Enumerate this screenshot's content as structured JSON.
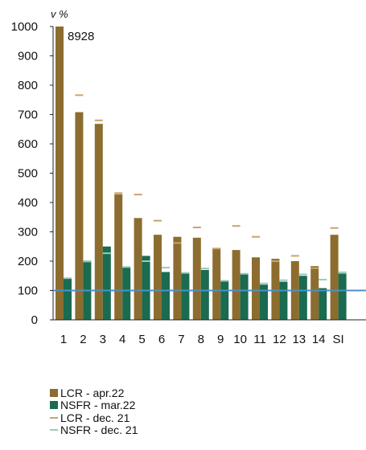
{
  "chart_data": {
    "type": "bar",
    "y_unit_label": "v %",
    "categories": [
      "1",
      "2",
      "3",
      "4",
      "5",
      "6",
      "7",
      "8",
      "9",
      "10",
      "11",
      "12",
      "13",
      "14",
      "SI"
    ],
    "ylim": [
      0,
      1000
    ],
    "yticks": [
      0,
      100,
      200,
      300,
      400,
      500,
      600,
      700,
      800,
      900,
      1000
    ],
    "grid": false,
    "reference_line": {
      "y": 100,
      "color": "#4a90c8"
    },
    "legend_position": "bottom",
    "series": [
      {
        "name": "LCR - apr.22",
        "kind": "bar",
        "color": "#8c6d2f",
        "values": [
          1000,
          708,
          668,
          428,
          347,
          290,
          283,
          280,
          245,
          238,
          213,
          208,
          200,
          183,
          290
        ]
      },
      {
        "name": "NSFR - mar.22",
        "kind": "bar",
        "color": "#1a6b4f",
        "values": [
          140,
          202,
          250,
          178,
          218,
          163,
          158,
          170,
          133,
          158,
          120,
          130,
          150,
          108,
          158
        ]
      },
      {
        "name": "LCR - dec. 21",
        "kind": "marker",
        "color": "#c9a36a",
        "values": [
          null,
          766,
          680,
          432,
          427,
          338,
          262,
          315,
          243,
          320,
          283,
          200,
          218,
          176,
          313
        ]
      },
      {
        "name": "NSFR - dec. 21",
        "kind": "marker",
        "color": "#9ccab8",
        "values": [
          142,
          199,
          227,
          180,
          200,
          178,
          160,
          175,
          133,
          157,
          124,
          135,
          155,
          137,
          162
        ]
      }
    ],
    "annotations": [
      {
        "category": "1",
        "text": "8928"
      }
    ]
  }
}
